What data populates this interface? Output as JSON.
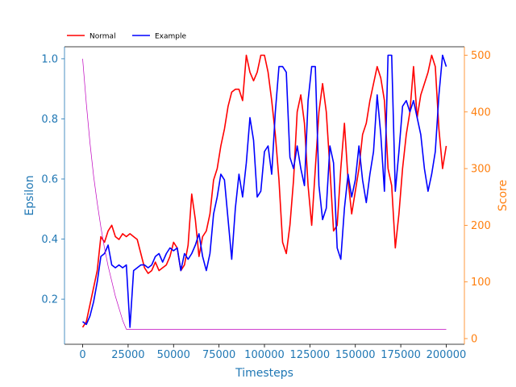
{
  "chart_data": {
    "type": "line",
    "xlabel": "Timesteps",
    "ylabel_left": "Epsilon",
    "ylabel_right": "Score",
    "xlim": [
      -10000,
      210000
    ],
    "ylim_left": [
      0.05,
      1.04
    ],
    "ylim_right": [
      -10,
      515
    ],
    "xticks": [
      0,
      25000,
      50000,
      75000,
      100000,
      125000,
      150000,
      175000,
      200000
    ],
    "xtick_labels": [
      "0",
      "25000",
      "50000",
      "75000",
      "100000",
      "125000",
      "150000",
      "175000",
      "200000"
    ],
    "yticks_left": [
      0.2,
      0.4,
      0.6,
      0.8,
      1.0
    ],
    "ytick_labels_left": [
      "0.2",
      "0.4",
      "0.6",
      "0.8",
      "1.0"
    ],
    "yticks_right": [
      0,
      100,
      200,
      300,
      400,
      500
    ],
    "ytick_labels_right": [
      "0",
      "100",
      "200",
      "300",
      "400",
      "500"
    ],
    "grid": false,
    "legend_position": "top-left",
    "colors": {
      "left_axis": "#1f77b4",
      "right_axis": "#ff7f0e",
      "normal": "#ff0000",
      "example": "#0000ff",
      "epsilon": "#bf00bf"
    },
    "series": [
      {
        "name": "Normal",
        "axis": "right",
        "x": [
          0,
          2000,
          4000,
          6000,
          8000,
          10000,
          12000,
          14000,
          16000,
          18000,
          20000,
          22000,
          24000,
          26000,
          28000,
          30000,
          32000,
          34000,
          36000,
          38000,
          40000,
          42000,
          44000,
          46000,
          48000,
          50000,
          52000,
          54000,
          56000,
          58000,
          60000,
          62000,
          64000,
          66000,
          68000,
          70000,
          72000,
          74000,
          76000,
          78000,
          80000,
          82000,
          84000,
          86000,
          88000,
          90000,
          92000,
          94000,
          96000,
          98000,
          100000,
          102000,
          104000,
          106000,
          108000,
          110000,
          112000,
          114000,
          116000,
          118000,
          120000,
          122000,
          124000,
          126000,
          128000,
          130000,
          132000,
          134000,
          136000,
          138000,
          140000,
          142000,
          144000,
          146000,
          148000,
          150000,
          152000,
          154000,
          156000,
          158000,
          160000,
          162000,
          164000,
          166000,
          168000,
          170000,
          172000,
          174000,
          176000,
          178000,
          180000,
          182000,
          184000,
          186000,
          188000,
          190000,
          192000,
          194000,
          196000,
          198000,
          200000
        ],
        "values": [
          20,
          30,
          60,
          90,
          120,
          180,
          170,
          190,
          200,
          180,
          175,
          185,
          180,
          185,
          180,
          175,
          150,
          125,
          115,
          120,
          135,
          120,
          125,
          130,
          145,
          170,
          160,
          120,
          130,
          165,
          255,
          210,
          145,
          180,
          190,
          220,
          280,
          300,
          340,
          370,
          410,
          435,
          440,
          440,
          420,
          500,
          470,
          455,
          470,
          500,
          500,
          470,
          420,
          360,
          280,
          170,
          150,
          200,
          280,
          400,
          430,
          380,
          270,
          200,
          300,
          400,
          450,
          400,
          300,
          190,
          200,
          300,
          380,
          280,
          220,
          260,
          300,
          360,
          380,
          420,
          450,
          480,
          460,
          420,
          300,
          270,
          160,
          220,
          300,
          360,
          400,
          480,
          390,
          430,
          450,
          470,
          500,
          480,
          370,
          300,
          340
        ]
      },
      {
        "name": "Example",
        "axis": "right",
        "x": [
          0,
          2000,
          4000,
          6000,
          8000,
          10000,
          12000,
          14000,
          16000,
          18000,
          20000,
          22000,
          24000,
          26000,
          28000,
          30000,
          32000,
          34000,
          36000,
          38000,
          40000,
          42000,
          44000,
          46000,
          48000,
          50000,
          52000,
          54000,
          56000,
          58000,
          60000,
          62000,
          64000,
          66000,
          68000,
          70000,
          72000,
          74000,
          76000,
          78000,
          80000,
          82000,
          84000,
          86000,
          88000,
          90000,
          92000,
          94000,
          96000,
          98000,
          100000,
          102000,
          104000,
          106000,
          108000,
          110000,
          112000,
          114000,
          116000,
          118000,
          120000,
          122000,
          124000,
          126000,
          128000,
          130000,
          132000,
          134000,
          136000,
          138000,
          140000,
          142000,
          144000,
          146000,
          148000,
          150000,
          152000,
          154000,
          156000,
          158000,
          160000,
          162000,
          164000,
          166000,
          168000,
          170000,
          172000,
          174000,
          176000,
          178000,
          180000,
          182000,
          184000,
          186000,
          188000,
          190000,
          192000,
          194000,
          196000,
          198000,
          200000
        ],
        "values": [
          30,
          25,
          40,
          65,
          100,
          145,
          150,
          165,
          130,
          125,
          130,
          125,
          130,
          20,
          120,
          125,
          130,
          130,
          125,
          130,
          145,
          150,
          135,
          150,
          160,
          155,
          160,
          120,
          150,
          140,
          150,
          165,
          185,
          145,
          120,
          150,
          220,
          250,
          290,
          280,
          210,
          140,
          230,
          290,
          250,
          310,
          390,
          350,
          250,
          260,
          330,
          340,
          290,
          400,
          480,
          480,
          470,
          320,
          300,
          340,
          300,
          270,
          420,
          480,
          480,
          270,
          210,
          230,
          340,
          310,
          160,
          140,
          230,
          290,
          250,
          280,
          340,
          280,
          240,
          290,
          330,
          430,
          360,
          260,
          500,
          500,
          260,
          330,
          410,
          420,
          400,
          420,
          390,
          360,
          300,
          260,
          290,
          330,
          430,
          500,
          480
        ]
      },
      {
        "name": "",
        "axis": "left",
        "x": [
          0,
          2000,
          4000,
          6000,
          8000,
          10000,
          12000,
          14000,
          16000,
          18000,
          20000,
          22000,
          24000,
          26000,
          50000,
          75000,
          100000,
          125000,
          150000,
          175000,
          200000
        ],
        "values": [
          1.0,
          0.85,
          0.72,
          0.61,
          0.52,
          0.44,
          0.37,
          0.31,
          0.26,
          0.21,
          0.17,
          0.13,
          0.1,
          0.1,
          0.1,
          0.1,
          0.1,
          0.1,
          0.1,
          0.1,
          0.1
        ]
      }
    ]
  }
}
